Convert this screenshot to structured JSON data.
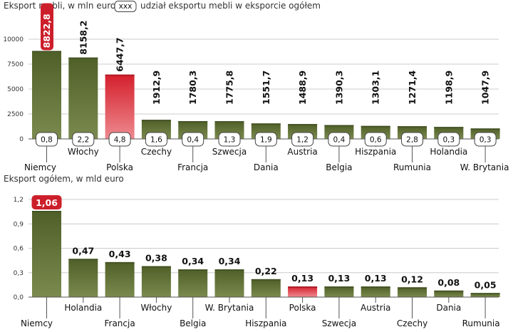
{
  "colors": {
    "bar": "#5a6b32",
    "bar_dark": "#3f4d20",
    "highlight": "#d4202c",
    "highlight_dark": "#9e1620",
    "label_bg": "#cc1f2b",
    "grid": "#cccccc"
  },
  "chart_data": [
    {
      "type": "bar",
      "title": "Eksport mebli, w mln euro",
      "legend_box": "xxx",
      "legend_text": "udział eksportu mebli w eksporcie ogółem",
      "categories": [
        "Niemcy",
        "Włochy",
        "Polska",
        "Czechy",
        "Francja",
        "Szwecja",
        "Dania",
        "Austria",
        "Belgia",
        "Hiszpania",
        "Rumunia",
        "Holandia",
        "W. Brytania"
      ],
      "values": [
        8822.8,
        8158.2,
        6447.7,
        1912.9,
        1780.3,
        1775.8,
        1551.7,
        1488.9,
        1390.3,
        1303.1,
        1271.4,
        1198.9,
        1047.9
      ],
      "value_labels": [
        "8822,8",
        "8158,2",
        "6447,7",
        "1912,9",
        "1780,3",
        "1775,8",
        "1551,7",
        "1488,9",
        "1390,3",
        "1303,1",
        "1271,4",
        "1198,9",
        "1047,9"
      ],
      "share_labels": [
        "0,8",
        "2,2",
        "4,8",
        "1,6",
        "0,4",
        "1,3",
        "1,9",
        "1,2",
        "0,4",
        "0,6",
        "2,8",
        "0,3",
        "0,3"
      ],
      "ylim": [
        0,
        10000
      ],
      "yticks": [
        0,
        2500,
        5000,
        7500,
        10000
      ],
      "ytick_labels": [
        "0",
        "2500",
        "5000",
        "7500",
        "10000"
      ],
      "highlight_index": 2,
      "emphasis_index": 0,
      "grid": true
    },
    {
      "type": "bar",
      "title": "Eksport ogółem, w mld euro",
      "categories": [
        "Niemcy",
        "Holandia",
        "Francja",
        "Włochy",
        "Belgia",
        "W. Brytania",
        "Hiszpania",
        "Polska",
        "Szwecja",
        "Austria",
        "Czechy",
        "Dania",
        "Rumunia"
      ],
      "values": [
        1.06,
        0.47,
        0.43,
        0.38,
        0.34,
        0.34,
        0.22,
        0.13,
        0.13,
        0.13,
        0.12,
        0.08,
        0.05
      ],
      "value_labels": [
        "1,06",
        "0,47",
        "0,43",
        "0,38",
        "0,34",
        "0,34",
        "0,22",
        "0,13",
        "0,13",
        "0,13",
        "0,12",
        "0,08",
        "0,05"
      ],
      "ylim": [
        0,
        1.2
      ],
      "yticks": [
        0,
        0.3,
        0.6,
        0.9,
        1.2
      ],
      "ytick_labels": [
        "0,0",
        "0,3",
        "0,6",
        "0,9",
        "1,2"
      ],
      "highlight_index": 7,
      "emphasis_index": 0,
      "grid": true
    }
  ]
}
